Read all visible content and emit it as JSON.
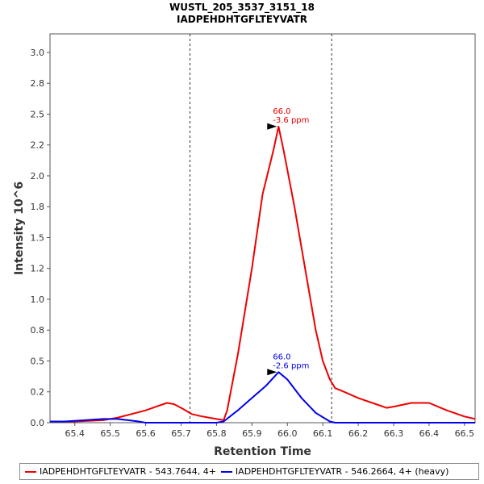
{
  "chart_data": {
    "type": "line",
    "title": "WUSTL_205_3537_3151_18",
    "subtitle": "IADPEHDHTGFLTEYVATR",
    "xlabel": "Retention Time",
    "ylabel": "Intensity 10^6",
    "xlim": [
      65.33,
      66.53
    ],
    "ylim": [
      0,
      3.15
    ],
    "x_ticks": [
      65.4,
      65.5,
      65.6,
      65.7,
      65.8,
      65.9,
      66.0,
      66.1,
      66.2,
      66.3,
      66.4,
      66.5
    ],
    "x_tick_labels": [
      "65.4",
      "65.5",
      "65.6",
      "65.7",
      "65.8",
      "65.9",
      "66.0",
      "66.1",
      "66.2",
      "66.3",
      "66.4",
      "66.5"
    ],
    "y_ticks": [
      0.0,
      0.25,
      0.5,
      0.75,
      1.0,
      1.25,
      1.5,
      1.75,
      2.0,
      2.25,
      2.5,
      2.75,
      3.0
    ],
    "y_tick_labels": [
      "0.0",
      "0.2",
      "0.5",
      "0.8",
      "1.0",
      "1.2",
      "1.5",
      "1.8",
      "2.0",
      "2.2",
      "2.5",
      "2.8",
      "3.0"
    ],
    "vlines": [
      65.725,
      66.125
    ],
    "series": [
      {
        "name": "IADPEHDHTGFLTEYVATR - 543.7644, 4+",
        "color": "#ee0000",
        "x": [
          65.33,
          65.4,
          65.48,
          65.52,
          65.56,
          65.6,
          65.63,
          65.66,
          65.68,
          65.7,
          65.73,
          65.76,
          65.8,
          65.82,
          65.83,
          65.86,
          65.9,
          65.93,
          65.96,
          65.975,
          65.99,
          66.02,
          66.05,
          66.08,
          66.1,
          66.12,
          66.135,
          66.16,
          66.2,
          66.25,
          66.28,
          66.3,
          66.35,
          66.4,
          66.45,
          66.5,
          66.53
        ],
        "y": [
          0.01,
          0.01,
          0.02,
          0.04,
          0.07,
          0.1,
          0.13,
          0.16,
          0.15,
          0.12,
          0.07,
          0.05,
          0.03,
          0.02,
          0.1,
          0.55,
          1.25,
          1.85,
          2.2,
          2.4,
          2.2,
          1.75,
          1.25,
          0.75,
          0.5,
          0.35,
          0.28,
          0.25,
          0.2,
          0.15,
          0.12,
          0.13,
          0.16,
          0.16,
          0.1,
          0.05,
          0.03
        ]
      },
      {
        "name": "IADPEHDHTGFLTEYVATR - 546.2664, 4+ (heavy)",
        "color": "#0000ee",
        "x": [
          65.33,
          65.37,
          65.43,
          65.48,
          65.52,
          65.55,
          65.58,
          65.6,
          65.7,
          65.8,
          65.82,
          65.86,
          65.9,
          65.94,
          65.975,
          66.0,
          66.04,
          66.08,
          66.12,
          66.135,
          66.2,
          66.3,
          66.4,
          66.53
        ],
        "y": [
          0.01,
          0.01,
          0.02,
          0.03,
          0.03,
          0.02,
          0.01,
          0.0,
          0.0,
          0.0,
          0.01,
          0.1,
          0.2,
          0.3,
          0.41,
          0.35,
          0.2,
          0.08,
          0.01,
          0.0,
          0.0,
          0.0,
          0.0,
          0.0
        ]
      }
    ],
    "annotations": [
      {
        "series": 0,
        "x": 65.975,
        "y": 2.4,
        "line1": "66.0",
        "line2": "-3.6 ppm",
        "color": "#ee0000"
      },
      {
        "series": 1,
        "x": 65.975,
        "y": 0.41,
        "line1": "66.0",
        "line2": "-2.6 ppm",
        "color": "#0000ee"
      }
    ]
  },
  "legend": [
    {
      "label": "IADPEHDHTGFLTEYVATR - 543.7644, 4+",
      "color": "#ee0000"
    },
    {
      "label": "IADPEHDHTGFLTEYVATR - 546.2664, 4+ (heavy)",
      "color": "#0000ee"
    }
  ]
}
